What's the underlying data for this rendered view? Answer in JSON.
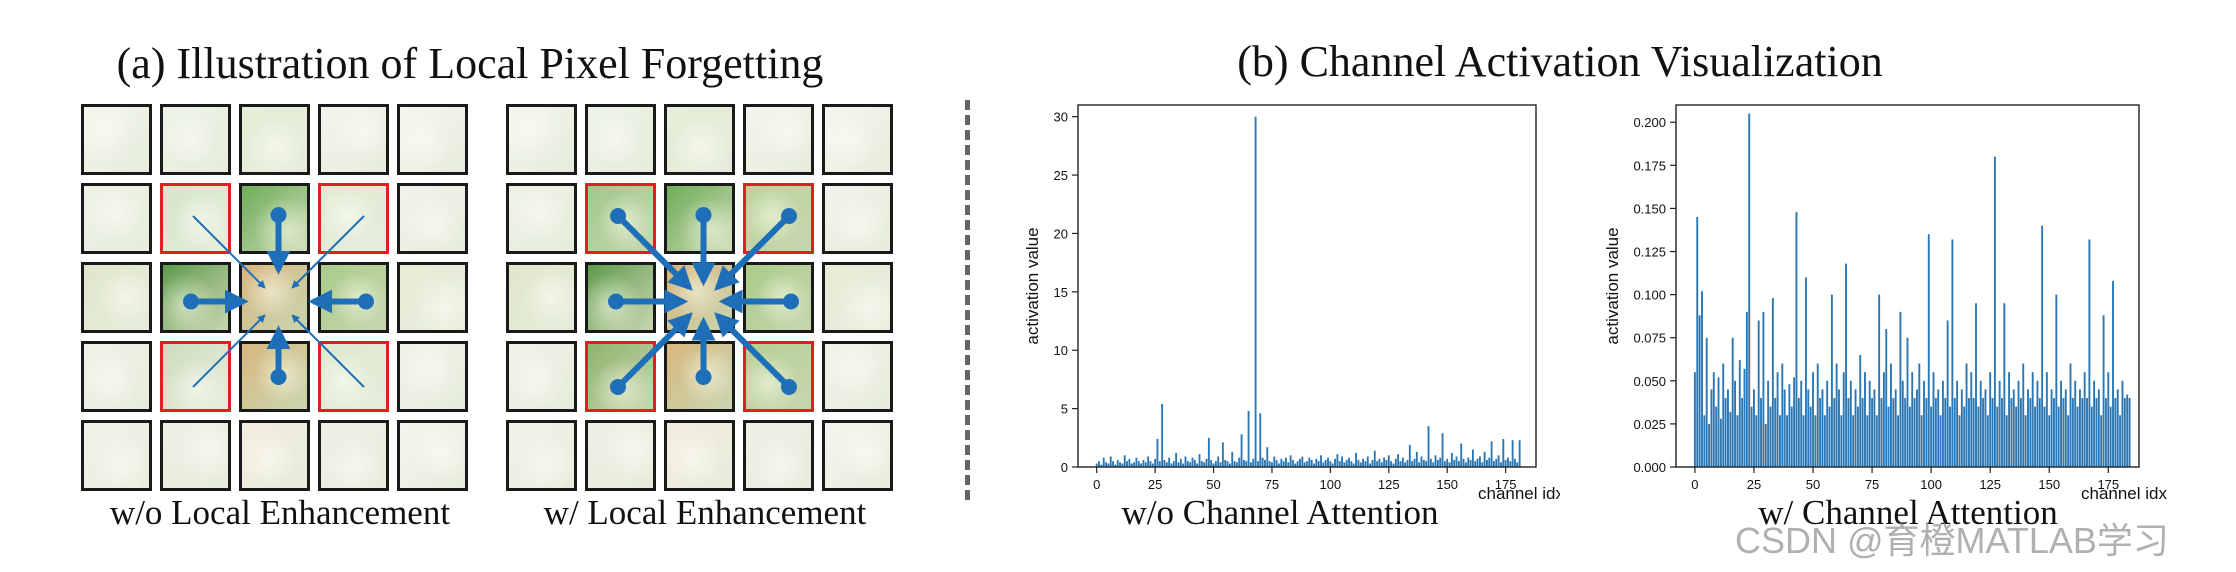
{
  "panel_a": {
    "title": "(a) Illustration of Local Pixel Forgetting",
    "left_caption": "w/o Local Enhancement",
    "right_caption": "w/ Local Enhancement"
  },
  "panel_b": {
    "title": "(b) Channel Activation Visualization",
    "left_caption": "w/o Channel Attention",
    "right_caption": "w/ Channel Attention"
  },
  "watermark": "CSDN @育橙MATLAB学习",
  "colors": {
    "arrow": "#1f6fb8",
    "bar": "#2a77b4",
    "red_border": "#e02020"
  },
  "chart_data": [
    {
      "type": "bar",
      "title": "w/o Channel Attention",
      "xlabel": "channel idx",
      "ylabel": "activation value",
      "xlim": [
        -8,
        188
      ],
      "ylim": [
        0,
        31
      ],
      "xticks": [
        0,
        25,
        50,
        75,
        100,
        125,
        150,
        175
      ],
      "xtick_labels": [
        "0",
        "25",
        "50",
        "75",
        "100",
        "125",
        "150",
        "175"
      ],
      "yticks": [
        0,
        5,
        10,
        15,
        20,
        25,
        30
      ],
      "ytick_labels": [
        "0",
        "5",
        "10",
        "15",
        "20",
        "25",
        "30"
      ],
      "values": [
        0.3,
        0.5,
        0.2,
        0.8,
        0.4,
        0.3,
        0.9,
        0.5,
        0.2,
        0.6,
        0.4,
        0.3,
        1.0,
        0.5,
        0.7,
        0.3,
        0.4,
        0.8,
        0.5,
        0.3,
        0.6,
        0.4,
        0.9,
        0.5,
        0.3,
        0.7,
        2.4,
        0.5,
        5.4,
        0.6,
        0.4,
        0.8,
        0.3,
        0.5,
        1.2,
        0.4,
        0.7,
        0.3,
        0.9,
        0.5,
        0.4,
        0.8,
        0.6,
        0.3,
        1.1,
        0.5,
        0.4,
        0.7,
        2.5,
        0.6,
        0.3,
        0.5,
        0.9,
        0.4,
        2.1,
        0.6,
        0.5,
        0.3,
        1.3,
        0.5,
        0.4,
        0.8,
        2.8,
        0.6,
        0.5,
        4.8,
        0.4,
        0.7,
        30.0,
        0.5,
        4.6,
        0.8,
        0.6,
        1.7,
        0.5,
        0.4,
        0.9,
        0.6,
        0.3,
        0.7,
        0.5,
        0.8,
        0.4,
        1.0,
        0.6,
        0.3,
        0.5,
        0.7,
        0.9,
        0.4,
        0.5,
        0.8,
        0.6,
        0.3,
        0.7,
        0.5,
        1.0,
        0.4,
        0.6,
        0.8,
        0.5,
        0.3,
        0.7,
        1.1,
        0.5,
        0.9,
        0.4,
        0.6,
        0.8,
        0.5,
        0.3,
        1.2,
        0.6,
        0.4,
        0.7,
        0.5,
        0.9,
        0.3,
        0.6,
        1.4,
        0.5,
        0.7,
        0.4,
        0.8,
        0.6,
        1.0,
        0.5,
        0.3,
        0.7,
        1.1,
        0.5,
        0.8,
        0.4,
        0.6,
        1.9,
        0.5,
        0.7,
        1.3,
        0.4,
        0.9,
        0.6,
        0.5,
        3.5,
        0.7,
        0.4,
        1.0,
        0.6,
        0.8,
        2.9,
        0.5,
        0.7,
        0.4,
        1.2,
        0.6,
        0.9,
        0.5,
        2.0,
        0.7,
        0.4,
        0.8,
        0.6,
        1.5,
        0.5,
        0.7,
        0.9,
        0.4,
        1.3,
        0.6,
        0.8,
        2.2,
        0.5,
        0.7,
        1.0,
        0.4,
        2.4,
        0.6,
        0.8,
        0.5,
        2.3,
        0.7,
        0.4,
        2.3
      ]
    },
    {
      "type": "bar",
      "title": "w/ Channel Attention",
      "xlabel": "channel idx",
      "ylabel": "activation value",
      "xlim": [
        -8,
        188
      ],
      "ylim": [
        0,
        0.21
      ],
      "xticks": [
        0,
        25,
        50,
        75,
        100,
        125,
        150,
        175
      ],
      "xtick_labels": [
        "0",
        "25",
        "50",
        "75",
        "100",
        "125",
        "150",
        "175"
      ],
      "yticks": [
        0.0,
        0.025,
        0.05,
        0.075,
        0.1,
        0.125,
        0.15,
        0.175,
        0.2
      ],
      "ytick_labels": [
        "0.000",
        "0.025",
        "0.050",
        "0.075",
        "0.100",
        "0.125",
        "0.150",
        "0.175",
        "0.200"
      ],
      "values": [
        0.055,
        0.145,
        0.088,
        0.102,
        0.03,
        0.075,
        0.025,
        0.045,
        0.055,
        0.035,
        0.052,
        0.028,
        0.06,
        0.04,
        0.045,
        0.032,
        0.075,
        0.05,
        0.03,
        0.062,
        0.04,
        0.057,
        0.09,
        0.205,
        0.035,
        0.045,
        0.03,
        0.085,
        0.04,
        0.09,
        0.025,
        0.05,
        0.035,
        0.098,
        0.04,
        0.055,
        0.03,
        0.06,
        0.045,
        0.03,
        0.048,
        0.035,
        0.052,
        0.148,
        0.04,
        0.05,
        0.03,
        0.11,
        0.045,
        0.035,
        0.055,
        0.03,
        0.06,
        0.04,
        0.045,
        0.03,
        0.05,
        0.035,
        0.1,
        0.04,
        0.06,
        0.045,
        0.03,
        0.055,
        0.118,
        0.04,
        0.05,
        0.03,
        0.045,
        0.035,
        0.065,
        0.04,
        0.055,
        0.03,
        0.05,
        0.04,
        0.045,
        0.03,
        0.1,
        0.04,
        0.055,
        0.08,
        0.035,
        0.06,
        0.04,
        0.045,
        0.03,
        0.09,
        0.05,
        0.04,
        0.075,
        0.035,
        0.055,
        0.04,
        0.045,
        0.06,
        0.03,
        0.05,
        0.04,
        0.135,
        0.035,
        0.055,
        0.04,
        0.045,
        0.03,
        0.05,
        0.04,
        0.085,
        0.035,
        0.132,
        0.04,
        0.05,
        0.03,
        0.045,
        0.035,
        0.06,
        0.04,
        0.055,
        0.04,
        0.095,
        0.035,
        0.05,
        0.04,
        0.045,
        0.03,
        0.055,
        0.04,
        0.18,
        0.035,
        0.05,
        0.04,
        0.095,
        0.03,
        0.055,
        0.04,
        0.045,
        0.035,
        0.05,
        0.04,
        0.06,
        0.03,
        0.045,
        0.04,
        0.055,
        0.035,
        0.05,
        0.04,
        0.14,
        0.035,
        0.055,
        0.03,
        0.045,
        0.04,
        0.1,
        0.035,
        0.05,
        0.04,
        0.045,
        0.03,
        0.06,
        0.04,
        0.05,
        0.035,
        0.045,
        0.04,
        0.055,
        0.04,
        0.132,
        0.035,
        0.05,
        0.04,
        0.045,
        0.03,
        0.088,
        0.04,
        0.055,
        0.035,
        0.108,
        0.04,
        0.045,
        0.03,
        0.05,
        0.04,
        0.042,
        0.04
      ]
    }
  ]
}
